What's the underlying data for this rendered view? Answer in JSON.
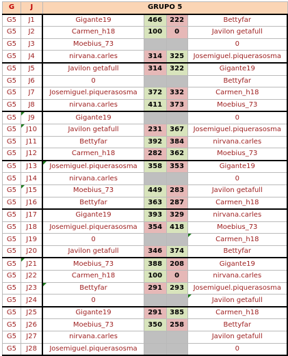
{
  "header": {
    "g": "G",
    "j": "J",
    "title": "GRUPO 5"
  },
  "rows": [
    {
      "g": "G5",
      "j": "J1",
      "home": "Gigante19",
      "s1": "466",
      "s2": "222",
      "away": "Bettyfar"
    },
    {
      "g": "G5",
      "j": "J2",
      "home": "Carmen_h18",
      "s1": "100",
      "s2": "0",
      "away": "Javilon getafull"
    },
    {
      "g": "G5",
      "j": "J3",
      "home": "Moebius_73",
      "s1": "",
      "s2": "",
      "away": "0"
    },
    {
      "g": "G5",
      "j": "J4",
      "home": "nirvana.carles",
      "s1": "314",
      "s2": "325",
      "away": "Josemiguel.piquerasosma"
    },
    {
      "g": "G5",
      "j": "J5",
      "home": "Javilon getafull",
      "s1": "314",
      "s2": "322",
      "away": "Gigante19"
    },
    {
      "g": "G5",
      "j": "J6",
      "home": "0",
      "s1": "",
      "s2": "",
      "away": "Bettyfar"
    },
    {
      "g": "G5",
      "j": "J7",
      "home": "Josemiguel.piquerasosma",
      "s1": "372",
      "s2": "332",
      "away": "Carmen_h18"
    },
    {
      "g": "G5",
      "j": "J8",
      "home": "nirvana.carles",
      "s1": "411",
      "s2": "373",
      "away": "Moebius_73"
    },
    {
      "g": "G5",
      "j": "J9",
      "home": "Gigante19",
      "s1": "",
      "s2": "",
      "away": "0"
    },
    {
      "g": "G5",
      "j": "J10",
      "home": "Javilon getafull",
      "s1": "231",
      "s2": "367",
      "away": "Josemiguel.piquerasosma"
    },
    {
      "g": "G5",
      "j": "J11",
      "home": "Bettyfar",
      "s1": "392",
      "s2": "384",
      "away": "nirvana.carles"
    },
    {
      "g": "G5",
      "j": "J12",
      "home": "Carmen_h18",
      "s1": "282",
      "s2": "362",
      "away": "Moebius_73"
    },
    {
      "g": "G5",
      "j": "J13",
      "home": "Josemiguel.piquerasosma",
      "s1": "358",
      "s2": "353",
      "away": "Gigante19"
    },
    {
      "g": "G5",
      "j": "J14",
      "home": "nirvana.carles",
      "s1": "",
      "s2": "",
      "away": "0"
    },
    {
      "g": "G5",
      "j": "J15",
      "home": "Moebius_73",
      "s1": "449",
      "s2": "283",
      "away": "Javilon getafull"
    },
    {
      "g": "G5",
      "j": "J16",
      "home": "Bettyfar",
      "s1": "363",
      "s2": "287",
      "away": "Carmen_h18"
    },
    {
      "g": "G5",
      "j": "J17",
      "home": "Gigante19",
      "s1": "393",
      "s2": "329",
      "away": "nirvana.carles"
    },
    {
      "g": "G5",
      "j": "J18",
      "home": "Josemiguel.piquerasosma",
      "s1": "354",
      "s2": "418",
      "away": "Moebius_73"
    },
    {
      "g": "G5",
      "j": "J19",
      "home": "0",
      "s1": "",
      "s2": "",
      "away": "Carmen_h18"
    },
    {
      "g": "G5",
      "j": "J20",
      "home": "Javilon getafull",
      "s1": "346",
      "s2": "374",
      "away": "Bettyfar"
    },
    {
      "g": "G5",
      "j": "J21",
      "home": "Moebius_73",
      "s1": "388",
      "s2": "208",
      "away": "Gigante19"
    },
    {
      "g": "G5",
      "j": "J22",
      "home": "Carmen_h18",
      "s1": "100",
      "s2": "0",
      "away": "nirvana.carles"
    },
    {
      "g": "G5",
      "j": "J23",
      "home": "Bettyfar",
      "s1": "291",
      "s2": "293",
      "away": "Josemiguel.piquerasosma"
    },
    {
      "g": "G5",
      "j": "J24",
      "home": "0",
      "s1": "",
      "s2": "",
      "away": "Javilon getafull"
    },
    {
      "g": "G5",
      "j": "J25",
      "home": "Gigante19",
      "s1": "291",
      "s2": "385",
      "away": "Carmen_h18"
    },
    {
      "g": "G5",
      "j": "J26",
      "home": "Moebius_73",
      "s1": "350",
      "s2": "258",
      "away": "Bettyfar"
    },
    {
      "g": "G5",
      "j": "J27",
      "home": "nirvana.carles",
      "s1": "",
      "s2": "",
      "away": "Javilon getafull"
    },
    {
      "g": "G5",
      "j": "J28",
      "home": "Josemiguel.piquerasosma",
      "s1": "",
      "s2": "",
      "away": "0"
    }
  ],
  "colors": {
    "header_bg": "#fbd5b5",
    "win_bg": "#d8e4bc",
    "loss_bg": "#e6b8b7",
    "empty_bg": "#bfbfbf",
    "text": "#9c1c1c"
  }
}
